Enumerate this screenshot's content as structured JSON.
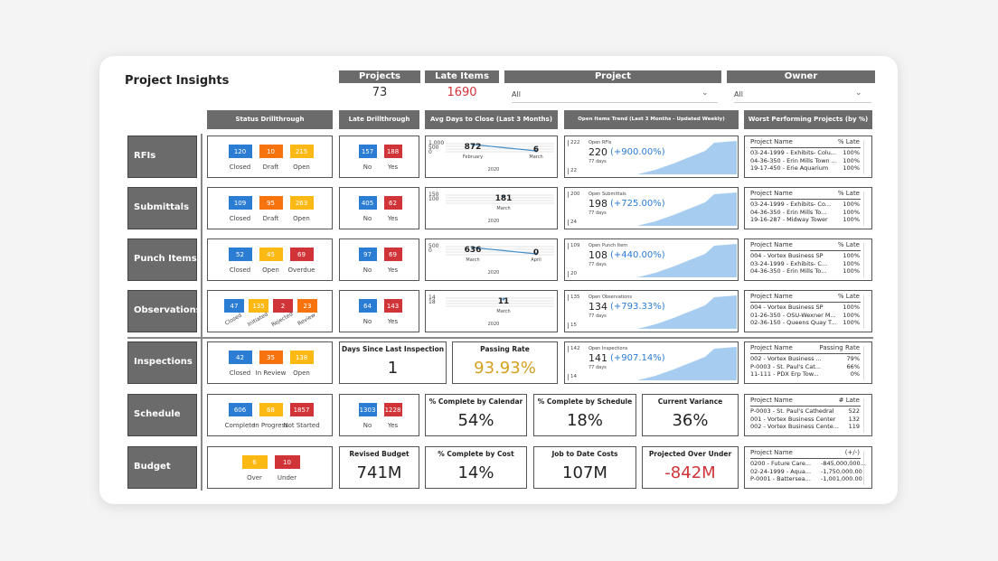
{
  "title": "Project Insights",
  "kpis": [
    {
      "label": "Projects",
      "value": "73",
      "color": "#333333"
    },
    {
      "label": "Late Items",
      "value": "1690",
      "color": "#d13438"
    }
  ],
  "filters": [
    {
      "label": "Project",
      "value": "All"
    },
    {
      "label": "Owner",
      "value": "All"
    }
  ],
  "column_headers": [
    "Status Drillthrough",
    "Late Drillthrough",
    "Avg Days to Close (Last 3 Months)",
    "Open Items Trend (Last 3 Months - Updated Weekly)",
    "Worst Performing Projects (by %)"
  ],
  "rows": [
    {
      "label": "RFIs",
      "status": [
        {
          "value": "120",
          "label": "Closed",
          "color": "#2b7cd3"
        },
        {
          "value": "10",
          "label": "Draft",
          "color": "#f7730e"
        },
        {
          "value": "215",
          "label": "Open",
          "color": "#fdb913"
        }
      ],
      "late": [
        {
          "value": "157",
          "label": "No",
          "color": "#2b7cd3"
        },
        {
          "value": "188",
          "label": "Yes",
          "color": "#d13438"
        }
      ],
      "avg_days": {
        "axis": [
          "1,000",
          "500",
          "0"
        ],
        "points": [
          {
            "value": "872",
            "month": "February"
          },
          {
            "value": "6",
            "month": "March"
          }
        ],
        "year": "2020"
      },
      "trend": {
        "axis": [
          "222",
          "22"
        ],
        "title": "Open RFIs",
        "value": "220",
        "change": "(+900.00%)",
        "period": "77 days"
      },
      "worst": {
        "headers": [
          "Project Name",
          "% Late"
        ],
        "rows": [
          [
            "03-24-1999 - Exhibits- Colu...",
            "100%"
          ],
          [
            "04-36-350 - Erin Mills Town ...",
            "100%"
          ],
          [
            "19-17-450 - Erie Aquarium",
            "100%"
          ]
        ]
      }
    },
    {
      "label": "Submittals",
      "status": [
        {
          "value": "109",
          "label": "Closed",
          "color": "#2b7cd3"
        },
        {
          "value": "95",
          "label": "Draft",
          "color": "#f7730e"
        },
        {
          "value": "263",
          "label": "Open",
          "color": "#fdb913"
        }
      ],
      "late": [
        {
          "value": "405",
          "label": "No",
          "color": "#2b7cd3"
        },
        {
          "value": "62",
          "label": "Yes",
          "color": "#d13438"
        }
      ],
      "avg_days": {
        "axis": [
          "150",
          "100"
        ],
        "points": [
          {
            "value": "181",
            "month": "March"
          }
        ],
        "year": "2020"
      },
      "trend": {
        "axis": [
          "200",
          "24"
        ],
        "title": "Open Submittals",
        "value": "198",
        "change": "(+725.00%)",
        "period": "77 days"
      },
      "worst": {
        "headers": [
          "Project Name",
          "% Late"
        ],
        "rows": [
          [
            "03-24-1999 - Exhibits- Co...",
            "100%"
          ],
          [
            "04-36-350 - Erin Mills To...",
            "100%"
          ],
          [
            "19-16-287 - Midway Tower",
            "100%"
          ]
        ]
      }
    },
    {
      "label": "Punch Items",
      "status": [
        {
          "value": "52",
          "label": "Closed",
          "color": "#2b7cd3"
        },
        {
          "value": "45",
          "label": "Open",
          "color": "#fdb913"
        },
        {
          "value": "69",
          "label": "Overdue",
          "color": "#d13438"
        }
      ],
      "late": [
        {
          "value": "97",
          "label": "No",
          "color": "#2b7cd3"
        },
        {
          "value": "69",
          "label": "Yes",
          "color": "#d13438"
        }
      ],
      "avg_days": {
        "axis": [
          "500",
          "0"
        ],
        "points": [
          {
            "value": "636",
            "month": "March"
          },
          {
            "value": "0",
            "month": "April"
          }
        ],
        "year": "2020"
      },
      "trend": {
        "axis": [
          "109",
          "20"
        ],
        "title": "Open Punch Item",
        "value": "108",
        "change": "(+440.00%)",
        "period": "77 days"
      },
      "worst": {
        "headers": [
          "Project Name",
          "% Late"
        ],
        "rows": [
          [
            "004 - Vortex Business SP",
            "100%"
          ],
          [
            "03-24-1999 - Exhibits- C...",
            "100%"
          ],
          [
            "04-36-350 - Erin Mills To...",
            "100%"
          ]
        ]
      }
    },
    {
      "label": "Observations",
      "status": [
        {
          "value": "47",
          "label": "Closed",
          "color": "#2b7cd3"
        },
        {
          "value": "135",
          "label": "Initiated",
          "color": "#fdb913"
        },
        {
          "value": "2",
          "label": "Rejected",
          "color": "#d13438"
        },
        {
          "value": "23",
          "label": "Review",
          "color": "#f7730e"
        }
      ],
      "late": [
        {
          "value": "64",
          "label": "No",
          "color": "#2b7cd3"
        },
        {
          "value": "143",
          "label": "Yes",
          "color": "#d13438"
        }
      ],
      "avg_days": {
        "axis": [
          "14",
          "18"
        ],
        "points": [
          {
            "value": "11",
            "month": "March"
          }
        ],
        "year": "2020"
      },
      "trend": {
        "axis": [
          "135",
          "15"
        ],
        "title": "Open Observations",
        "value": "134",
        "change": "(+793.33%)",
        "period": "77 days"
      },
      "worst": {
        "headers": [
          "Project Name",
          "% Late"
        ],
        "rows": [
          [
            "004 - Vortex Business SP",
            "100%"
          ],
          [
            "01-26-350 - OSU-Wexner M...",
            "100%"
          ],
          [
            "02-36-150 - Queens Quay T...",
            "100%"
          ]
        ]
      }
    },
    {
      "label": "Inspections",
      "status": [
        {
          "value": "42",
          "label": "Closed",
          "color": "#2b7cd3"
        },
        {
          "value": "35",
          "label": "In Review",
          "color": "#f7730e"
        },
        {
          "value": "138",
          "label": "Open",
          "color": "#fdb913"
        }
      ],
      "metrics": [
        {
          "label": "Days Since Last Inspection",
          "value": "1",
          "color": "#222222"
        },
        {
          "label": "Passing Rate",
          "value": "93.93%",
          "color": "#d4a020"
        }
      ],
      "trend": {
        "axis": [
          "142",
          "14"
        ],
        "title": "Open Inspections",
        "value": "141",
        "change": "(+907.14%)",
        "period": "77 days"
      },
      "worst": {
        "headers": [
          "Project Name",
          "Passing Rate"
        ],
        "rows": [
          [
            "002 - Vortex Business ...",
            "79%"
          ],
          [
            "P-0003 - St. Paul's Cat...",
            "66%"
          ],
          [
            "11-111 - PDX Erp Tow...",
            "0%"
          ]
        ]
      }
    },
    {
      "label": "Schedule",
      "status": [
        {
          "value": "606",
          "label": "Complete",
          "color": "#2b7cd3"
        },
        {
          "value": "68",
          "label": "In Progress",
          "color": "#fdb913"
        },
        {
          "value": "1857",
          "label": "Not Started",
          "color": "#d13438"
        }
      ],
      "late": [
        {
          "value": "1303",
          "label": "No",
          "color": "#2b7cd3"
        },
        {
          "value": "1228",
          "label": "Yes",
          "color": "#d13438"
        }
      ],
      "metrics": [
        {
          "label": "% Complete by Calendar",
          "value": "54%",
          "color": "#222222"
        },
        {
          "label": "% Complete by Schedule",
          "value": "18%",
          "color": "#222222"
        },
        {
          "label": "Current Variance",
          "value": "36%",
          "color": "#222222"
        }
      ],
      "worst": {
        "headers": [
          "Project Name",
          "# Late"
        ],
        "rows": [
          [
            "P-0003 - St. Paul's Cathedral",
            "522"
          ],
          [
            "001 - Vortex Business Center",
            "132"
          ],
          [
            "002 - Vortex Business Cente...",
            "119"
          ]
        ]
      }
    },
    {
      "label": "Budget",
      "status": [
        {
          "value": "6",
          "label": "Over",
          "color": "#fdb913"
        },
        {
          "value": "10",
          "label": "Under",
          "color": "#d13438"
        }
      ],
      "metrics": [
        {
          "label": "Revised Budget",
          "value": "741M",
          "color": "#222222"
        },
        {
          "label": "% Complete by Cost",
          "value": "14%",
          "color": "#222222"
        },
        {
          "label": "Job to Date Costs",
          "value": "107M",
          "color": "#222222"
        },
        {
          "label": "Projected Over Under",
          "value": "-842M",
          "color": "#d13438"
        }
      ],
      "worst": {
        "headers": [
          "Project Name",
          "(+/-)"
        ],
        "rows": [
          [
            "0200 - Future Care...",
            "-845,000,000..."
          ],
          [
            "02-24-1999 - Aqua...",
            "-1,750,000.00"
          ],
          [
            "P-0001 - Battersea...",
            "-1,001,000.00"
          ]
        ]
      }
    }
  ]
}
